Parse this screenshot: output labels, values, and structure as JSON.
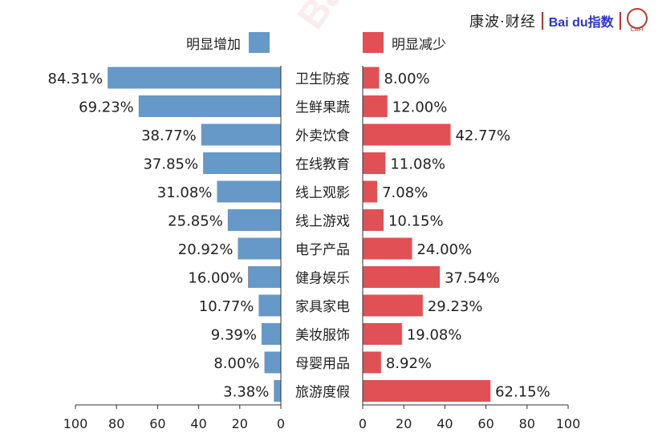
{
  "brand": {
    "source_text": "康波·财经",
    "partner_text": "Bai du指数",
    "seal_text": "CAFI",
    "accent_color": "#e0242c",
    "partner_color": "#2932e1"
  },
  "watermark_text": "Bai",
  "colors": {
    "increase": "#6699c8",
    "decrease": "#e05055"
  },
  "chart_data": {
    "type": "bar",
    "layout": "diverging-horizontal",
    "categories": [
      "卫生防疫",
      "生鲜果蔬",
      "外卖饮食",
      "在线教育",
      "线上观影",
      "线上游戏",
      "电子产品",
      "健身娱乐",
      "家具家电",
      "美妆服饰",
      "母婴用品",
      "旅游度假"
    ],
    "series": [
      {
        "name": "明显增加",
        "values": [
          84.31,
          69.23,
          38.77,
          37.85,
          31.08,
          25.85,
          20.92,
          16.0,
          10.77,
          9.39,
          8.0,
          3.38
        ],
        "labels": [
          "84.31%",
          "69.23%",
          "38.77%",
          "37.85%",
          "31.08%",
          "25.85%",
          "20.92%",
          "16.00%",
          "10.77%",
          "9.39%",
          "8.00%",
          "3.38%"
        ]
      },
      {
        "name": "明显减少",
        "values": [
          8.0,
          12.0,
          42.77,
          11.08,
          7.08,
          10.15,
          24.0,
          37.54,
          29.23,
          19.08,
          8.92,
          62.15
        ],
        "labels": [
          "8.00%",
          "12.00%",
          "42.77%",
          "11.08%",
          "7.08%",
          "10.15%",
          "24.00%",
          "37.54%",
          "29.23%",
          "19.08%",
          "8.92%",
          "62.15%"
        ]
      }
    ],
    "xlim": [
      0,
      100
    ],
    "left_ticks": [
      "100",
      "80",
      "60",
      "40",
      "20",
      "0"
    ],
    "right_ticks": [
      "0",
      "20",
      "40",
      "60",
      "80",
      "100"
    ],
    "legend_position": "top-center",
    "grid": false
  }
}
